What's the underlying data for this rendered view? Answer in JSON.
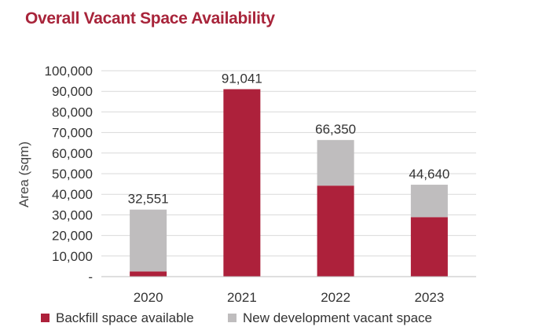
{
  "chart_data": {
    "type": "bar",
    "stacked": true,
    "title": "Overall Vacant Space Availability",
    "ylabel": "Area (sqm)",
    "xlabel": "",
    "ylim": [
      0,
      100000
    ],
    "y_ticks": [
      "-",
      "10,000",
      "20,000",
      "30,000",
      "40,000",
      "50,000",
      "60,000",
      "70,000",
      "80,000",
      "90,000",
      "100,000"
    ],
    "categories": [
      "2020",
      "2021",
      "2022",
      "2023"
    ],
    "series": [
      {
        "name": "Backfill space available",
        "values": [
          2500,
          91041,
          44200,
          28900
        ],
        "color": "#ad213b"
      },
      {
        "name": "New development vacant space",
        "values": [
          30051,
          0,
          22150,
          15740
        ],
        "color": "#bfbdbe"
      }
    ],
    "totals": [
      "32,551",
      "91,041",
      "66,350",
      "44,640"
    ],
    "grid": true,
    "legend_position": "bottom"
  }
}
